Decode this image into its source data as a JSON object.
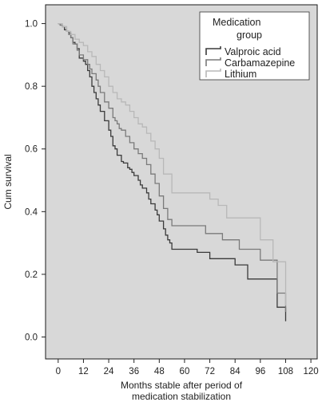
{
  "chart_data": {
    "type": "line",
    "step": true,
    "xlabel": [
      "Months stable after period of",
      "medication stabilization"
    ],
    "ylabel": "Cum survival",
    "xlim": [
      -6,
      123
    ],
    "ylim": [
      -0.07,
      1.06
    ],
    "xticks": [
      0,
      12,
      24,
      36,
      48,
      60,
      72,
      84,
      96,
      108,
      120
    ],
    "xtick_labels": [
      "0",
      "12",
      "24",
      "36",
      "48",
      "60",
      "72",
      "84",
      "96",
      "108",
      "120"
    ],
    "yticks": [
      0.0,
      0.2,
      0.4,
      0.6,
      0.8,
      1.0
    ],
    "ytick_labels": [
      "0.0",
      "0.2",
      "0.4",
      "0.6",
      "0.8",
      "1.0"
    ],
    "legend": {
      "title": [
        "Medication",
        "group"
      ],
      "position": "top-right"
    },
    "colors": {
      "plot_background": "#d8d8d8",
      "frame": "#1a1a1a"
    },
    "series": [
      {
        "name": "Valproic acid",
        "color": "#3a3a3a",
        "x": [
          0,
          1,
          2,
          3,
          4,
          5,
          6,
          7,
          8,
          9,
          10,
          12,
          13,
          14,
          15,
          16,
          17,
          18,
          19,
          20,
          22,
          24,
          25,
          26,
          27,
          28,
          30,
          31,
          32,
          33,
          34,
          35,
          36,
          38,
          39,
          40,
          42,
          43,
          44,
          46,
          47,
          48,
          50,
          51,
          52,
          53,
          54,
          56,
          66,
          72,
          84,
          90,
          104,
          108
        ],
        "y": [
          1.0,
          0.995,
          0.99,
          0.98,
          0.975,
          0.97,
          0.955,
          0.94,
          0.935,
          0.92,
          0.89,
          0.88,
          0.87,
          0.85,
          0.83,
          0.8,
          0.78,
          0.76,
          0.74,
          0.72,
          0.69,
          0.66,
          0.64,
          0.61,
          0.6,
          0.58,
          0.56,
          0.555,
          0.555,
          0.54,
          0.535,
          0.525,
          0.515,
          0.5,
          0.485,
          0.475,
          0.46,
          0.44,
          0.425,
          0.405,
          0.39,
          0.37,
          0.345,
          0.325,
          0.31,
          0.3,
          0.28,
          0.28,
          0.27,
          0.25,
          0.23,
          0.185,
          0.095,
          0.05
        ]
      },
      {
        "name": "Carbamazepine",
        "color": "#7a7a7a",
        "x": [
          0,
          1,
          2,
          4,
          5,
          6,
          7,
          9,
          10,
          12,
          14,
          15,
          16,
          18,
          19,
          20,
          22,
          24,
          26,
          27,
          28,
          29,
          30,
          32,
          34,
          36,
          38,
          40,
          42,
          44,
          46,
          48,
          50,
          52,
          54,
          60,
          70,
          78,
          86,
          96,
          104,
          108
        ],
        "y": [
          1.0,
          0.995,
          0.99,
          0.975,
          0.965,
          0.955,
          0.935,
          0.915,
          0.9,
          0.885,
          0.87,
          0.855,
          0.84,
          0.82,
          0.8,
          0.78,
          0.75,
          0.73,
          0.7,
          0.69,
          0.68,
          0.665,
          0.66,
          0.64,
          0.62,
          0.6,
          0.585,
          0.57,
          0.55,
          0.52,
          0.49,
          0.45,
          0.41,
          0.375,
          0.355,
          0.355,
          0.33,
          0.31,
          0.28,
          0.245,
          0.14,
          0.08
        ]
      },
      {
        "name": "Lithium",
        "color": "#b8b8b8",
        "x": [
          0,
          2,
          4,
          6,
          8,
          10,
          12,
          14,
          16,
          18,
          20,
          22,
          24,
          26,
          28,
          30,
          32,
          34,
          36,
          38,
          40,
          42,
          44,
          46,
          48,
          50,
          54,
          64,
          72,
          76,
          80,
          96,
          102,
          108
        ],
        "y": [
          1.0,
          0.99,
          0.975,
          0.965,
          0.95,
          0.94,
          0.93,
          0.91,
          0.895,
          0.87,
          0.85,
          0.83,
          0.8,
          0.78,
          0.76,
          0.75,
          0.74,
          0.72,
          0.7,
          0.68,
          0.67,
          0.65,
          0.625,
          0.6,
          0.57,
          0.52,
          0.46,
          0.46,
          0.44,
          0.42,
          0.38,
          0.31,
          0.24,
          0.1
        ]
      }
    ]
  }
}
